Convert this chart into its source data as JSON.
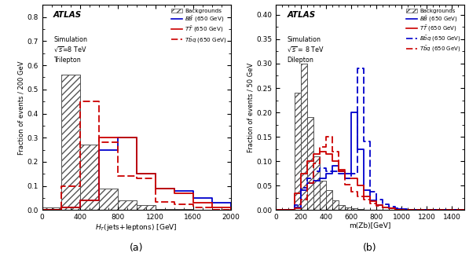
{
  "panel_a": {
    "ylabel": "Fraction of events / 200 GeV",
    "xlabel": "H_{T}(jets+leptons) [GeV]",
    "xlim": [
      0,
      2000
    ],
    "ylim": [
      0,
      0.85
    ],
    "yticks": [
      0.0,
      0.1,
      0.2,
      0.3,
      0.4,
      0.5,
      0.6,
      0.7,
      0.8
    ],
    "xticks": [
      0,
      400,
      800,
      1200,
      1600,
      2000
    ],
    "bin_edges": [
      0,
      200,
      400,
      600,
      800,
      1000,
      1200,
      1400,
      1600,
      1800,
      2000
    ],
    "bg_values": [
      0.01,
      0.56,
      0.27,
      0.09,
      0.04,
      0.02,
      0.005,
      0.005,
      0.0,
      0.0
    ],
    "BB_values": [
      0.0,
      0.01,
      0.04,
      0.25,
      0.3,
      0.15,
      0.09,
      0.08,
      0.05,
      0.03
    ],
    "TT_values": [
      0.0,
      0.01,
      0.04,
      0.3,
      0.3,
      0.15,
      0.09,
      0.07,
      0.03,
      0.01
    ],
    "Tbq_values": [
      0.0,
      0.1,
      0.45,
      0.28,
      0.14,
      0.13,
      0.035,
      0.025,
      0.01,
      0.0
    ],
    "BB_color": "#0000cc",
    "TT_color": "#cc0000",
    "Tbq_color": "#cc0000",
    "label_a": "(a)"
  },
  "panel_b": {
    "ylabel": "Fraction of events / 50 GeV",
    "xlabel": "m(Zb)[GeV]",
    "xlim": [
      0,
      1500
    ],
    "ylim": [
      0,
      0.42
    ],
    "yticks": [
      0.0,
      0.05,
      0.1,
      0.15,
      0.2,
      0.25,
      0.3,
      0.35,
      0.4
    ],
    "xticks": [
      0,
      200,
      400,
      600,
      800,
      1000,
      1200,
      1400
    ],
    "bin_edges": [
      0,
      50,
      100,
      150,
      200,
      250,
      300,
      350,
      400,
      450,
      500,
      550,
      600,
      650,
      700,
      750,
      800,
      850,
      900,
      950,
      1000,
      1050,
      1100,
      1150,
      1200,
      1250,
      1300,
      1350,
      1400,
      1450,
      1500
    ],
    "bg_values": [
      0.0,
      0.0,
      0.0,
      0.24,
      0.3,
      0.19,
      0.11,
      0.06,
      0.04,
      0.02,
      0.01,
      0.005,
      0.003,
      0.002,
      0.001,
      0.001,
      0.0,
      0.0,
      0.0,
      0.0,
      0.0,
      0.0,
      0.0,
      0.0,
      0.0,
      0.0,
      0.0,
      0.0,
      0.0,
      0.0
    ],
    "BB_values": [
      0.0,
      0.0,
      0.0,
      0.005,
      0.04,
      0.055,
      0.06,
      0.065,
      0.075,
      0.09,
      0.08,
      0.075,
      0.2,
      0.125,
      0.04,
      0.02,
      0.01,
      0.006,
      0.003,
      0.002,
      0.001,
      0.0,
      0.0,
      0.0,
      0.0,
      0.0,
      0.0,
      0.0,
      0.0,
      0.0
    ],
    "TT_values": [
      0.0,
      0.0,
      0.0,
      0.035,
      0.075,
      0.1,
      0.115,
      0.12,
      0.115,
      0.1,
      0.08,
      0.065,
      0.065,
      0.05,
      0.028,
      0.018,
      0.01,
      0.005,
      0.003,
      0.001,
      0.0,
      0.0,
      0.0,
      0.0,
      0.0,
      0.0,
      0.0,
      0.0,
      0.0,
      0.0
    ],
    "BBq_values": [
      0.0,
      0.0,
      0.0,
      0.01,
      0.045,
      0.065,
      0.08,
      0.085,
      0.08,
      0.08,
      0.075,
      0.065,
      0.075,
      0.29,
      0.14,
      0.038,
      0.022,
      0.012,
      0.007,
      0.003,
      0.002,
      0.001,
      0.0,
      0.0,
      0.0,
      0.0,
      0.0,
      0.0,
      0.0,
      0.0
    ],
    "Tbq_values": [
      0.0,
      0.0,
      0.0,
      0.004,
      0.022,
      0.055,
      0.095,
      0.13,
      0.15,
      0.12,
      0.082,
      0.052,
      0.038,
      0.028,
      0.022,
      0.013,
      0.008,
      0.005,
      0.003,
      0.001,
      0.0,
      0.0,
      0.0,
      0.0,
      0.0,
      0.0,
      0.0,
      0.0,
      0.0,
      0.0
    ],
    "BB_color": "#0000cc",
    "TT_color": "#cc0000",
    "BBq_color": "#0000cc",
    "Tbq_color": "#cc0000",
    "label_b": "(b)"
  }
}
